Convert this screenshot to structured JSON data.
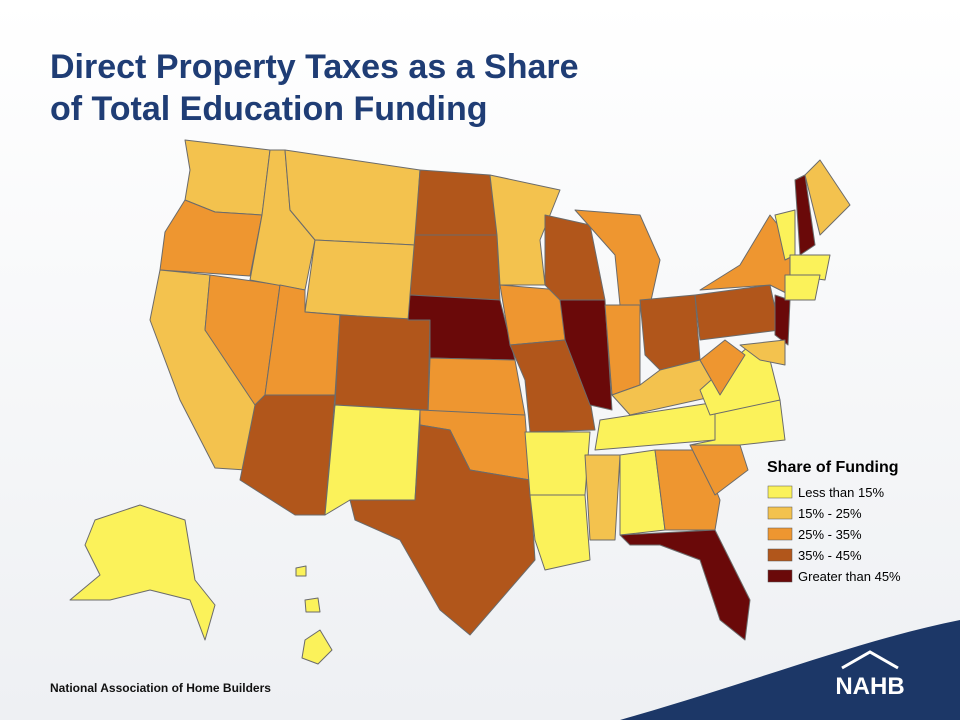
{
  "title": [
    "Direct Property Taxes as a Share",
    "of Total Education Funding"
  ],
  "legend": {
    "title": "Share of Funding",
    "items": [
      {
        "label": "Less than 15%",
        "color": "#fbf25a"
      },
      {
        "label": "15% - 25%",
        "color": "#f3c24e"
      },
      {
        "label": "25% - 35%",
        "color": "#ee9630"
      },
      {
        "label": "35% - 45%",
        "color": "#b1561b"
      },
      {
        "label": "Greater than 45%",
        "color": "#6a0909"
      }
    ]
  },
  "map": {
    "regions": [
      1,
      2,
      1,
      2,
      1,
      1,
      1,
      2,
      3,
      3,
      0,
      3,
      3,
      4,
      2,
      2,
      3,
      1,
      2,
      3,
      0,
      0,
      3,
      4,
      2,
      2,
      3,
      1,
      0,
      1,
      0,
      2,
      4,
      2,
      0,
      0,
      2,
      3,
      2,
      4,
      1,
      0,
      4,
      1,
      0,
      0,
      0,
      0,
      0,
      0
    ]
  },
  "footer": {
    "organization": "National Association of Home Builders",
    "logo": "NAHB"
  }
}
